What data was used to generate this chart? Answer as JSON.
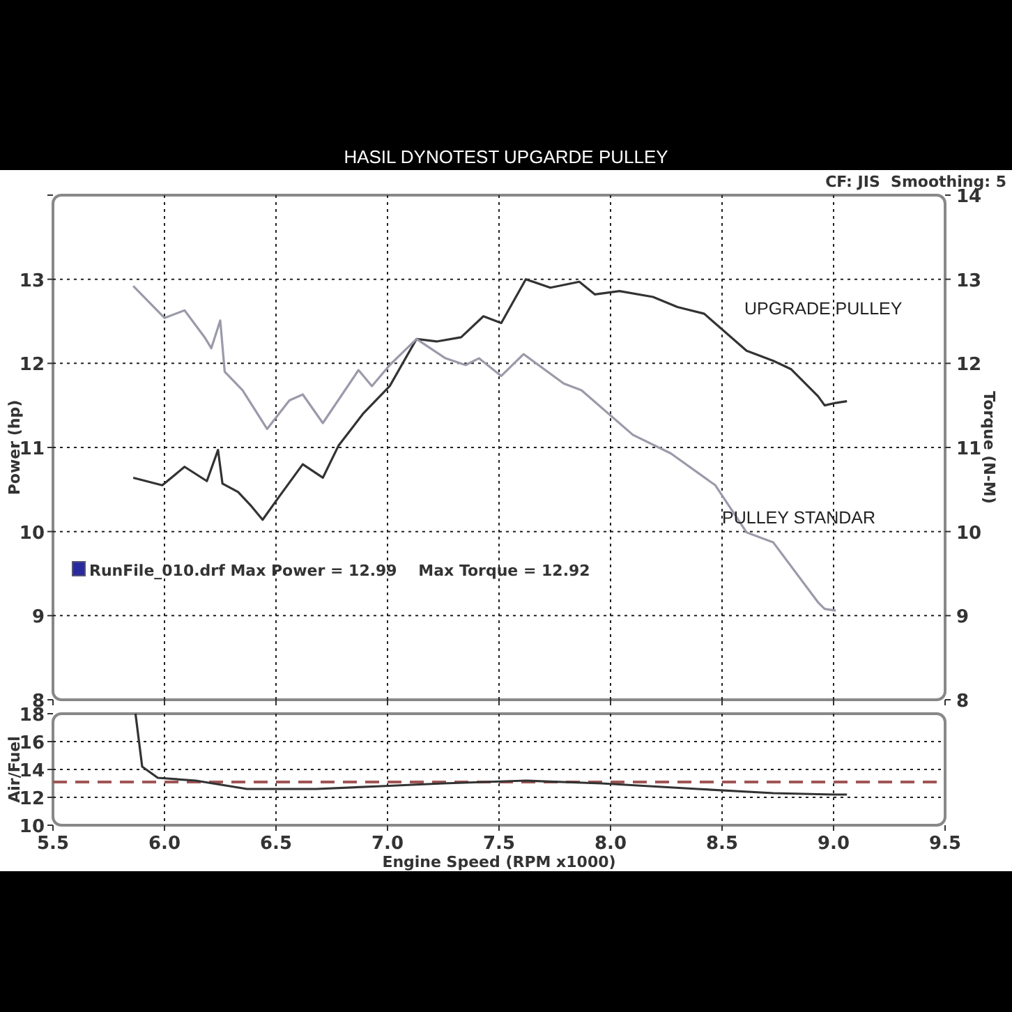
{
  "chart_data": [
    {
      "type": "line",
      "title": "HASIL DYNOTEST UPGARDE PULLEY",
      "ylabel": "Power (hp)",
      "y2label": "Torque (N-M)",
      "annotations": [
        "CF: JIS  Smoothing: 5",
        "RunFile_010.drf Max Power = 12.99    Max Torque = 12.92"
      ],
      "xlim": [
        5.5,
        9.5
      ],
      "xticks": [
        5.5,
        6,
        6.5,
        7,
        7.5,
        8,
        8.5,
        9,
        9.5
      ],
      "ylim": [
        8,
        14
      ],
      "yticks": [
        8,
        9,
        10,
        11,
        12,
        13,
        {
          "value": 14,
          "label": null
        }
      ],
      "y2lim": [
        8,
        14
      ],
      "y2ticks": [
        8,
        9,
        10,
        11,
        12,
        13,
        14
      ],
      "tick_labels": "y",
      "grid": true,
      "legend": false,
      "series": [
        {
          "name": "UPGRADE PULLEY",
          "color": "#333333",
          "x": [
            5.86,
            5.99,
            6.09,
            6.19,
            6.24,
            6.26,
            6.33,
            6.39,
            6.44,
            6.51,
            6.62,
            6.71,
            6.78,
            6.89,
            7.01,
            7.13,
            7.22,
            7.33,
            7.43,
            7.51,
            7.62,
            7.73,
            7.86,
            7.93,
            8.04,
            8.19,
            8.3,
            8.42,
            8.61,
            8.73,
            8.81,
            8.93,
            8.96,
            9.01,
            9.06
          ],
          "values": [
            10.64,
            10.55,
            10.77,
            10.6,
            10.97,
            10.57,
            10.47,
            10.3,
            10.14,
            10.4,
            10.8,
            10.64,
            11.02,
            11.4,
            11.73,
            12.29,
            12.26,
            12.31,
            12.56,
            12.48,
            13.0,
            12.9,
            12.97,
            12.82,
            12.86,
            12.79,
            12.67,
            12.59,
            12.15,
            12.03,
            11.93,
            11.61,
            11.5,
            11.53,
            11.55
          ]
        },
        {
          "name": "PULLEY STANDAR",
          "color": "#9a9aaa",
          "x": [
            5.86,
            6.0,
            6.09,
            6.18,
            6.21,
            6.25,
            6.27,
            6.35,
            6.46,
            6.56,
            6.62,
            6.71,
            6.87,
            6.93,
            7.01,
            7.13,
            7.26,
            7.35,
            7.41,
            7.51,
            7.61,
            7.79,
            7.87,
            8.1,
            8.27,
            8.47,
            8.61,
            8.73,
            8.93,
            8.96,
            9.01
          ],
          "values": [
            12.92,
            12.54,
            12.63,
            12.31,
            12.18,
            12.51,
            11.9,
            11.68,
            11.22,
            11.56,
            11.63,
            11.29,
            11.92,
            11.73,
            11.98,
            12.29,
            12.06,
            11.98,
            12.06,
            11.85,
            12.11,
            11.76,
            11.68,
            11.15,
            10.93,
            10.55,
            9.99,
            9.87,
            9.16,
            9.08,
            9.06
          ]
        }
      ]
    },
    {
      "type": "line",
      "ylabel": "Air/Fuel",
      "xlabel": "Engine Speed (RPM x1000)",
      "xlim": [
        5.5,
        9.5
      ],
      "xticks": [
        5.5,
        {
          "value": 6,
          "label": "6.0"
        },
        6.5,
        {
          "value": 7,
          "label": "7.0"
        },
        7.5,
        {
          "value": 8,
          "label": "8.0"
        },
        8.5,
        {
          "value": 9,
          "label": "9.0"
        },
        9.5
      ],
      "ylim": [
        10,
        18
      ],
      "yticks": [
        10,
        12,
        14,
        16,
        18
      ],
      "grid": true,
      "ref_lines": [
        {
          "axis": "y",
          "value": 13.1,
          "color": "#a05555",
          "line_style": "dashed"
        }
      ],
      "series": [
        {
          "color": "#333333",
          "x": [
            5.87,
            5.9,
            5.97,
            6.14,
            6.37,
            6.68,
            6.97,
            7.25,
            7.62,
            7.96,
            8.39,
            8.73,
            9.0,
            9.06
          ],
          "values": [
            18,
            14.2,
            13.4,
            13.2,
            12.6,
            12.6,
            12.8,
            13.0,
            13.2,
            13.0,
            12.6,
            12.3,
            12.2,
            12.2
          ]
        }
      ]
    }
  ]
}
